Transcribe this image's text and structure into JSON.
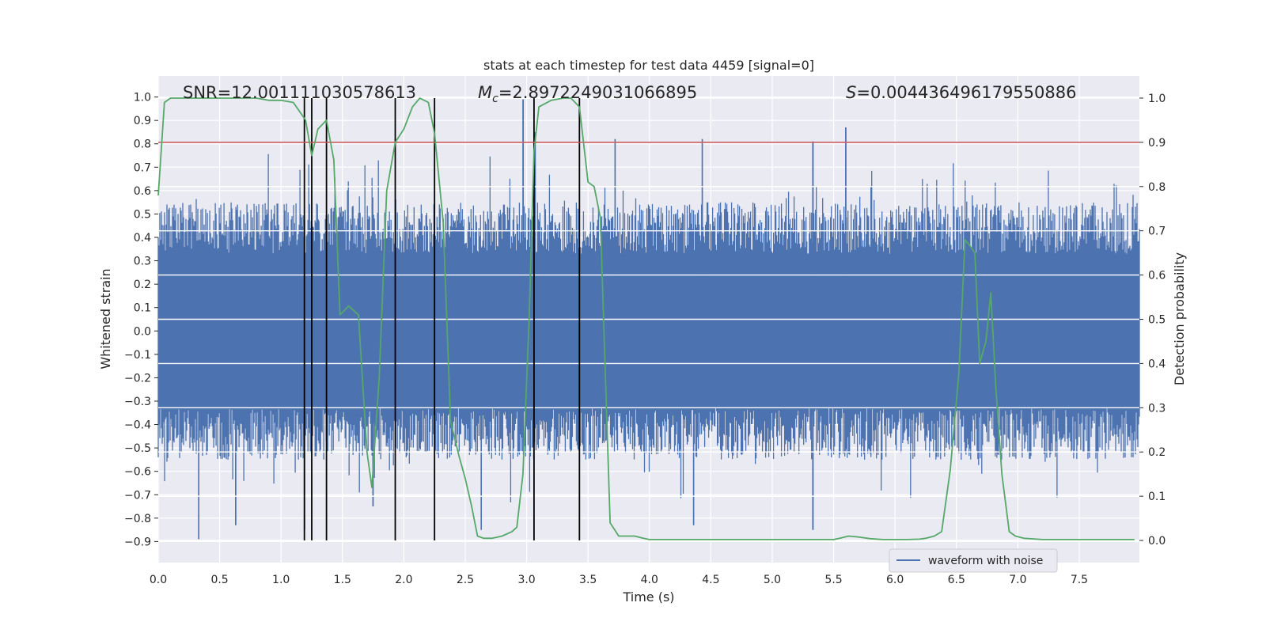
{
  "chart_data": {
    "type": "line",
    "title": "stats at each timestep for test data 4459 [signal=0]",
    "xlabel": "Time (s)",
    "ylabel": "Whitened strain",
    "y2label": "Detection probability",
    "xlim": [
      0,
      7.99
    ],
    "ylim": [
      -0.99,
      1.09
    ],
    "y2lim": [
      -0.05,
      1.05
    ],
    "xticks": [
      "0.0",
      "0.5",
      "1.0",
      "1.5",
      "2.0",
      "2.5",
      "3.0",
      "3.5",
      "4.0",
      "4.5",
      "5.0",
      "5.5",
      "6.0",
      "6.5",
      "7.0",
      "7.5"
    ],
    "yticks": [
      "1.0",
      "0.9",
      "0.8",
      "0.7",
      "0.6",
      "0.5",
      "0.4",
      "0.3",
      "0.2",
      "0.1",
      "0.0",
      "-0.1",
      "-0.2",
      "-0.3",
      "-0.4",
      "-0.5",
      "-0.6",
      "-0.7",
      "-0.8",
      "-0.9"
    ],
    "y2ticks": [
      "1.0",
      "0.9",
      "0.8",
      "0.7",
      "0.6",
      "0.5",
      "0.4",
      "0.3",
      "0.2",
      "0.1",
      "0.0"
    ],
    "grid": true,
    "annotations": {
      "snr": "SNR=12.001111030578613",
      "mc_symbol": "M",
      "mc_sub": "c",
      "mc_value": "=2.8972249031066895",
      "s_symbol": "S",
      "s_value": "=0.004436496179550886"
    },
    "threshold": {
      "y2": 0.9,
      "color": "#c44e52"
    },
    "vertical_markers": {
      "x": [
        1.19,
        1.25,
        1.37,
        1.93,
        2.25,
        3.06,
        3.43
      ],
      "y2_top": 1.0,
      "color": "#000000"
    },
    "waveform_envelope": {
      "name": "waveform with noise",
      "color": "#4c72b0",
      "band_upper": 0.33,
      "band_lower": -0.33,
      "typical_peak_upper": 0.55,
      "typical_peak_lower": -0.55,
      "notable_peaks": [
        {
          "x": 0.33,
          "y": -0.89
        },
        {
          "x": 0.63,
          "y": -0.83
        },
        {
          "x": 1.19,
          "y": -0.85
        },
        {
          "x": 1.75,
          "y": -0.75
        },
        {
          "x": 2.63,
          "y": -0.85
        },
        {
          "x": 2.97,
          "y": 0.99
        },
        {
          "x": 3.07,
          "y": 0.85
        },
        {
          "x": 3.72,
          "y": 0.82
        },
        {
          "x": 4.36,
          "y": -0.83
        },
        {
          "x": 4.43,
          "y": 0.82
        },
        {
          "x": 5.33,
          "y": -0.85
        },
        {
          "x": 5.33,
          "y": 0.81
        },
        {
          "x": 5.6,
          "y": 0.87
        }
      ]
    },
    "series": [
      {
        "name": "detection probability",
        "axis": "y2",
        "color": "#55a868",
        "x": [
          0.0,
          0.05,
          0.1,
          0.2,
          0.4,
          0.6,
          0.8,
          0.9,
          1.0,
          1.1,
          1.15,
          1.2,
          1.25,
          1.3,
          1.37,
          1.43,
          1.48,
          1.55,
          1.63,
          1.7,
          1.74,
          1.8,
          1.86,
          1.93,
          2.0,
          2.07,
          2.13,
          2.2,
          2.25,
          2.32,
          2.38,
          2.45,
          2.5,
          2.55,
          2.6,
          2.65,
          2.72,
          2.8,
          2.88,
          2.92,
          2.97,
          3.02,
          3.06,
          3.1,
          3.2,
          3.3,
          3.36,
          3.43,
          3.5,
          3.55,
          3.6,
          3.68,
          3.75,
          3.8,
          3.88,
          3.95,
          4.0,
          4.5,
          5.0,
          5.5,
          5.55,
          5.62,
          5.7,
          5.8,
          5.9,
          6.0,
          6.1,
          6.2,
          6.25,
          6.32,
          6.38,
          6.45,
          6.52,
          6.57,
          6.6,
          6.65,
          6.69,
          6.74,
          6.78,
          6.82,
          6.87,
          6.93,
          6.98,
          7.05,
          7.2,
          7.5,
          7.95
        ],
        "y": [
          0.78,
          0.99,
          1.0,
          1.0,
          1.0,
          1.0,
          1.0,
          0.995,
          0.995,
          0.99,
          0.97,
          0.95,
          0.87,
          0.93,
          0.95,
          0.86,
          0.51,
          0.53,
          0.51,
          0.2,
          0.12,
          0.37,
          0.79,
          0.9,
          0.93,
          0.98,
          1.0,
          0.99,
          0.92,
          0.72,
          0.27,
          0.19,
          0.14,
          0.08,
          0.01,
          0.005,
          0.005,
          0.01,
          0.02,
          0.03,
          0.15,
          0.5,
          0.88,
          0.98,
          0.995,
          1.0,
          1.0,
          0.98,
          0.81,
          0.8,
          0.73,
          0.04,
          0.01,
          0.01,
          0.01,
          0.005,
          0.002,
          0.002,
          0.002,
          0.002,
          0.005,
          0.01,
          0.008,
          0.004,
          0.002,
          0.002,
          0.002,
          0.003,
          0.005,
          0.01,
          0.02,
          0.16,
          0.38,
          0.68,
          0.67,
          0.65,
          0.4,
          0.45,
          0.56,
          0.35,
          0.15,
          0.02,
          0.01,
          0.005,
          0.002,
          0.002,
          0.002
        ]
      }
    ]
  }
}
